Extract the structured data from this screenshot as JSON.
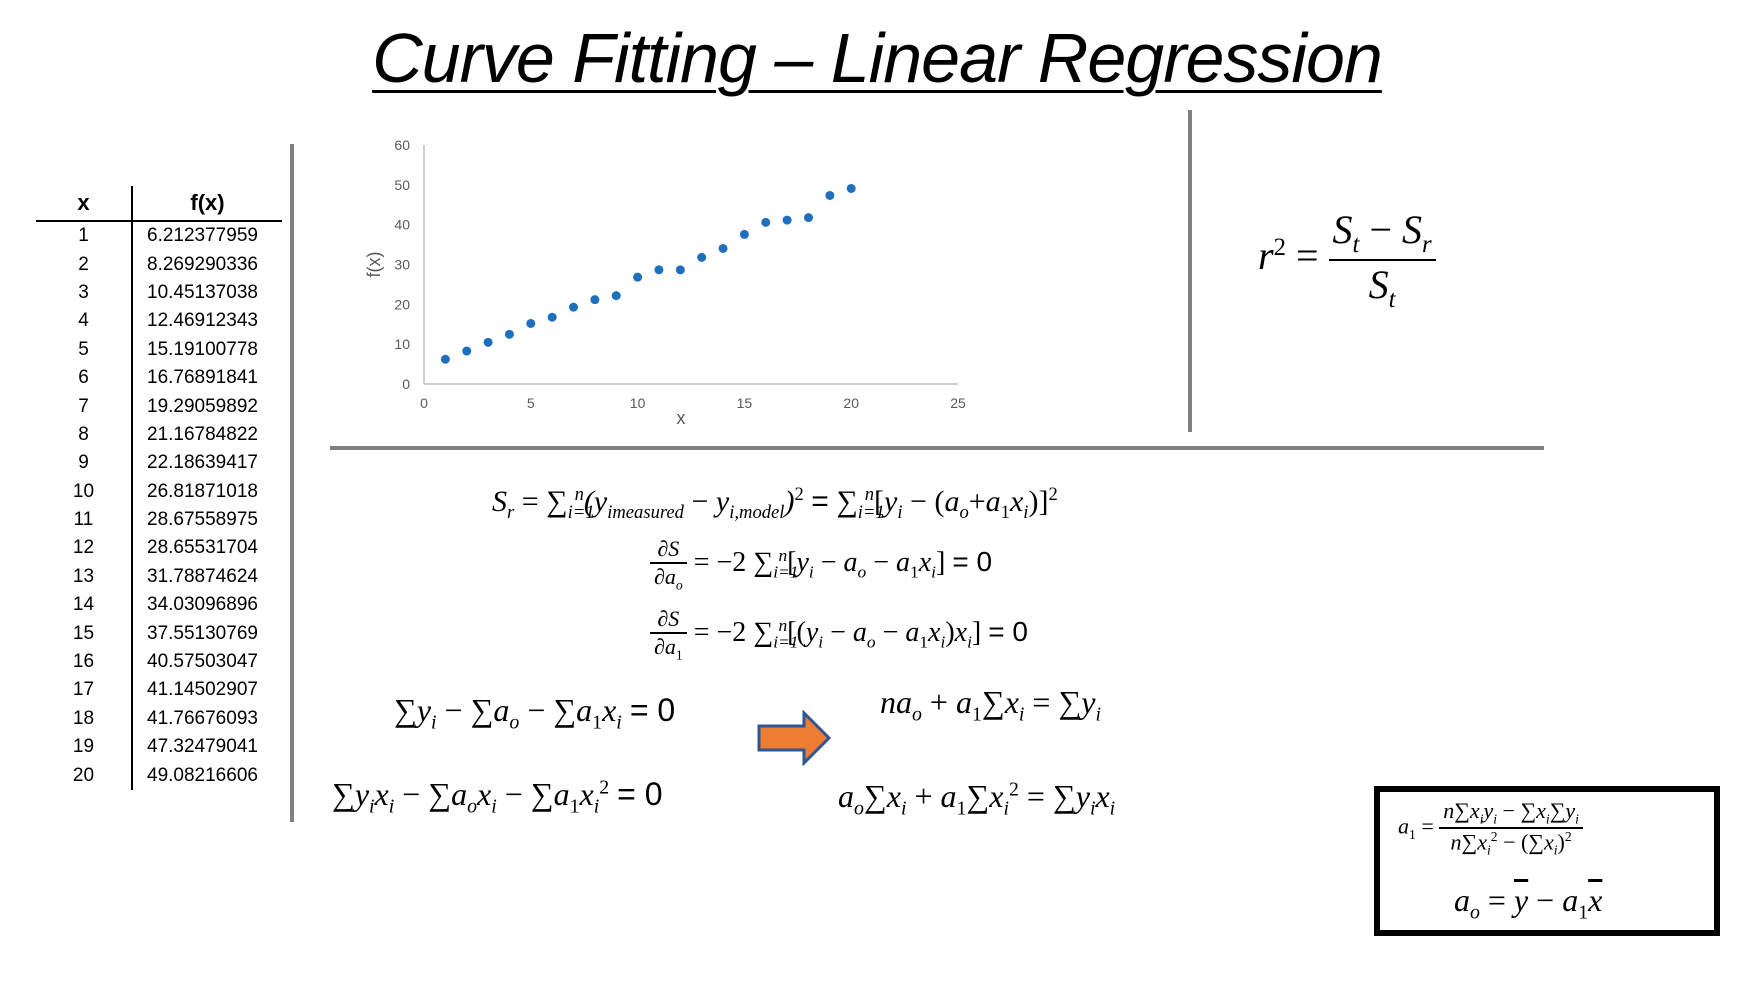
{
  "title": "Curve Fitting – Linear Regression",
  "table": {
    "headers": [
      "x",
      "f(x)"
    ],
    "rows": [
      [
        "1",
        "6.212377959"
      ],
      [
        "2",
        "8.269290336"
      ],
      [
        "3",
        "10.45137038"
      ],
      [
        "4",
        "12.46912343"
      ],
      [
        "5",
        "15.19100778"
      ],
      [
        "6",
        "16.76891841"
      ],
      [
        "7",
        "19.29059892"
      ],
      [
        "8",
        "21.16784822"
      ],
      [
        "9",
        "22.18639417"
      ],
      [
        "10",
        "26.81871018"
      ],
      [
        "11",
        "28.67558975"
      ],
      [
        "12",
        "28.65531704"
      ],
      [
        "13",
        "31.78874624"
      ],
      [
        "14",
        "34.03096896"
      ],
      [
        "15",
        "37.55130769"
      ],
      [
        "16",
        "40.57503047"
      ],
      [
        "17",
        "41.14502907"
      ],
      [
        "18",
        "41.76676093"
      ],
      [
        "19",
        "47.32479041"
      ],
      [
        "20",
        "49.08216606"
      ]
    ]
  },
  "chart_data": {
    "type": "scatter",
    "title": "",
    "xlabel": "x",
    "ylabel": "f(x)",
    "xlim": [
      0,
      25
    ],
    "ylim": [
      0,
      60
    ],
    "xticks": [
      "0",
      "5",
      "10",
      "15",
      "20",
      "25"
    ],
    "yticks": [
      "0",
      "10",
      "20",
      "30",
      "40",
      "50",
      "60"
    ],
    "grid": false,
    "marker_color": "#1f6fbf",
    "x": [
      1,
      2,
      3,
      4,
      5,
      6,
      7,
      8,
      9,
      10,
      11,
      12,
      13,
      14,
      15,
      16,
      17,
      18,
      19,
      20
    ],
    "y": [
      6.212377959,
      8.269290336,
      10.45137038,
      12.46912343,
      15.19100778,
      16.76891841,
      19.29059892,
      21.16784822,
      22.18639417,
      26.81871018,
      28.67558975,
      28.65531704,
      31.78874624,
      34.03096896,
      37.55130769,
      40.57503047,
      41.14502907,
      41.76676093,
      47.32479041,
      49.08216606
    ]
  },
  "equations": {
    "eq_zero": "= 0",
    "r_squared": "r² = (Sₜ − Sᵣ) / Sₜ",
    "sr": "Sᵣ = Σⁿᵢ₌₁(y_imeasured − y_i,model)² = Σⁿᵢ₌₁[yᵢ − (aₒ+a₁xᵢ)]²",
    "dS_da0": "∂S/∂aₒ = −2 Σⁿᵢ₌₁[yᵢ − aₒ − a₁xᵢ] = 0",
    "dS_da1": "∂S/∂a₁ = −2 Σⁿᵢ₌₁[(yᵢ − aₒ − a₁xᵢ)xᵢ] = 0",
    "normal1_left": "Σyᵢ − Σaₒ − Σa₁xᵢ = 0",
    "normal2_left": "Σyᵢxᵢ − Σaₒxᵢ − Σa₁xᵢ² = 0",
    "normal1_right": "naₒ + a₁Σxᵢ = Σyᵢ",
    "normal2_right": "aₒΣxᵢ + a₁Σxᵢ² = Σyᵢxᵢ",
    "a1_solution": "a₁ = (nΣxᵢyᵢ − ΣxᵢΣyᵢ) / (nΣxᵢ² − (Σxᵢ)²)",
    "a0_solution": "aₒ = ȳ − a₁x̄"
  },
  "colors": {
    "divider": "#808080",
    "arrow_fill": "#ed7d31",
    "arrow_stroke": "#2f5597",
    "marker": "#1f6fbf"
  }
}
